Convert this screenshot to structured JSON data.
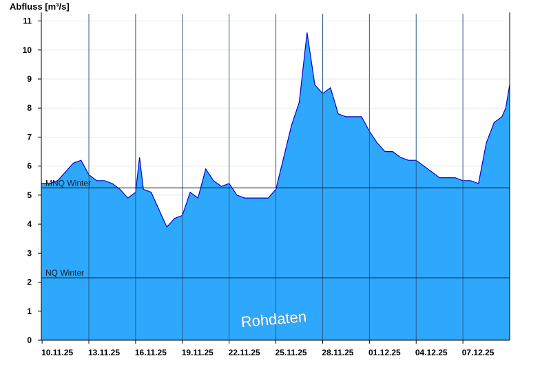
{
  "chart_data": {
    "type": "area",
    "ylabel": "Abfluss [m³/s]",
    "xlabel": "",
    "title": "",
    "ylim": [
      0,
      11.25
    ],
    "xlim": [
      "10.11.25",
      "10.12.25"
    ],
    "yticks": [
      0,
      1,
      2,
      3,
      4,
      5,
      6,
      7,
      8,
      9,
      10,
      11
    ],
    "xticks": [
      "10.11.25",
      "13.11.25",
      "16.11.25",
      "19.11.25",
      "22.11.25",
      "25.11.25",
      "28.11.25",
      "01.12.25",
      "04.12.25",
      "07.12.25"
    ],
    "grid": "vertical lines at x ticks, faint horizontal lines",
    "colors": {
      "fill": "#2ea8fc",
      "line": "#0000cc",
      "reference": "#000000",
      "grid": "#2a5a8a"
    },
    "reference_lines": [
      {
        "label": "MNQ Winter",
        "value": 5.25
      },
      {
        "label": "NQ Winter",
        "value": 2.15
      }
    ],
    "watermark": "Rohdaten",
    "series": [
      {
        "x": [
          "10.11.25",
          "10.11.25 12h",
          "11.11.25",
          "11.11.25 12h",
          "12.11.25",
          "12.11.25 12h",
          "13.11.25",
          "13.11.25 12h",
          "14.11.25",
          "14.11.25 12h",
          "15.11.25",
          "15.11.25 12h",
          "16.11.25",
          "16.11.25 06h",
          "16.11.25 12h",
          "17.11.25",
          "17.11.25 12h",
          "18.11.25",
          "18.11.25 12h",
          "19.11.25",
          "19.11.25 12h",
          "20.11.25",
          "20.11.25 12h",
          "21.11.25",
          "21.11.25 12h",
          "22.11.25",
          "22.11.25 12h",
          "23.11.25",
          "23.11.25 12h",
          "24.11.25",
          "24.11.25 12h",
          "25.11.25",
          "25.11.25 12h",
          "26.11.25",
          "26.11.25 12h",
          "27.11.25",
          "27.11.25 12h",
          "28.11.25",
          "28.11.25 12h",
          "29.11.25",
          "29.11.25 12h",
          "30.11.25",
          "30.11.25 12h",
          "01.12.25",
          "01.12.25 12h",
          "02.12.25",
          "02.12.25 12h",
          "03.12.25",
          "03.12.25 12h",
          "04.12.25",
          "04.12.25 12h",
          "05.12.25",
          "05.12.25 12h",
          "06.12.25",
          "06.12.25 12h",
          "07.12.25",
          "07.12.25 12h",
          "08.12.25",
          "08.12.25 12h",
          "09.12.25",
          "09.12.25 12h",
          "09.12.25 18h",
          "10.12.25"
        ],
        "values": [
          5.4,
          5.4,
          5.5,
          5.8,
          6.1,
          6.2,
          5.7,
          5.5,
          5.5,
          5.4,
          5.2,
          4.9,
          5.1,
          6.3,
          5.2,
          5.1,
          4.5,
          3.9,
          4.2,
          4.3,
          5.1,
          4.9,
          5.9,
          5.5,
          5.3,
          5.4,
          5.0,
          4.9,
          4.9,
          4.9,
          4.9,
          5.2,
          6.3,
          7.4,
          8.2,
          10.6,
          8.8,
          8.5,
          8.7,
          7.8,
          7.7,
          7.7,
          7.7,
          7.2,
          6.8,
          6.5,
          6.5,
          6.3,
          6.2,
          6.2,
          6.0,
          5.8,
          5.6,
          5.6,
          5.6,
          5.5,
          5.5,
          5.4,
          6.8,
          7.5,
          7.7,
          8.0,
          8.8
        ]
      }
    ]
  }
}
